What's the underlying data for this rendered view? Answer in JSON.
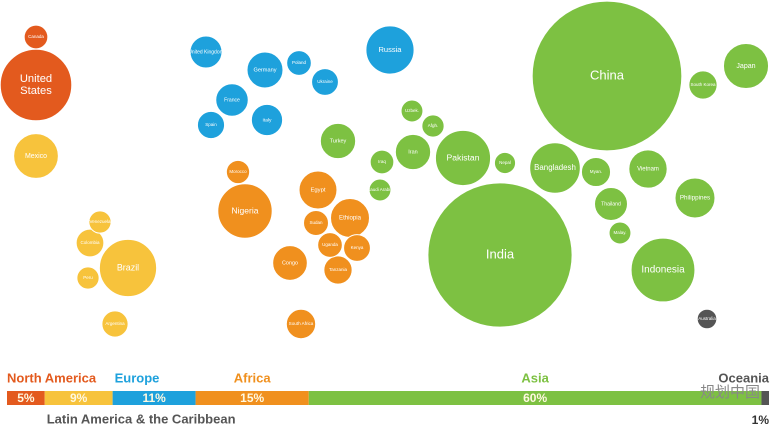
{
  "chart_data": [
    {
      "type": "bubble",
      "series": [
        {
          "color": "#e35a1e",
          "labels": [
            "Canada",
            "United States"
          ],
          "values": [
            35,
            320
          ]
        },
        {
          "color": "#f7c33c",
          "labels": [
            "Mexico",
            "Colombia",
            "Brazil",
            "Argentina",
            "Peru",
            "Venezuela"
          ],
          "values": [
            125,
            48,
            205,
            43,
            31,
            31
          ]
        },
        {
          "color": "#1ea1dc",
          "labels": [
            "United Kingdom",
            "Germany",
            "France",
            "Italy",
            "Spain",
            "Poland",
            "Ukraine",
            "Russia"
          ],
          "values": [
            64,
            81,
            66,
            61,
            46,
            38,
            45,
            145
          ]
        },
        {
          "color": "#f0901e",
          "labels": [
            "Nigeria",
            "Egypt",
            "Ethiopia",
            "Congo",
            "Kenya",
            "Tanzania",
            "South Africa",
            "Sudan",
            "Uganda",
            "Morocco"
          ],
          "values": [
            185,
            90,
            95,
            75,
            45,
            50,
            54,
            39,
            38,
            34
          ]
        },
        {
          "color": "#7dc142",
          "labels": [
            "China",
            "India",
            "Pakistan",
            "Bangladesh",
            "Indonesia",
            "Japan",
            "Philippines",
            "Vietnam",
            "Thailand",
            "Myan.",
            "Iran",
            "Turkey",
            "South Korea",
            "Nepal",
            "Iraq",
            "Saudi Arabia",
            "Uzbek.",
            "Afgh.",
            "Malay."
          ],
          "values": [
            1400,
            1300,
            190,
            160,
            255,
            127,
            100,
            92,
            68,
            53,
            78,
            78,
            50,
            28,
            35,
            30,
            30,
            31,
            30
          ]
        },
        {
          "color": "#555555",
          "labels": [
            "Australia"
          ],
          "values": [
            24
          ]
        }
      ]
    },
    {
      "type": "stacked-bar",
      "xlim": [
        0,
        101
      ],
      "series": [
        {
          "name": "North America",
          "color": "#e35a1e",
          "values": [
            5
          ],
          "value_labels": [
            "5%"
          ]
        },
        {
          "name": "Latin America & the Caribbean",
          "color": "#f7c33c",
          "values": [
            9
          ],
          "value_labels": [
            "9%"
          ]
        },
        {
          "name": "Europe",
          "color": "#1ea1dc",
          "values": [
            11
          ],
          "value_labels": [
            "11%"
          ]
        },
        {
          "name": "Africa",
          "color": "#f0901e",
          "values": [
            15
          ],
          "value_labels": [
            "15%"
          ]
        },
        {
          "name": "Asia",
          "color": "#7dc142",
          "values": [
            60
          ],
          "value_labels": [
            "60%"
          ]
        },
        {
          "name": "Oceania",
          "color": "#555555",
          "values": [
            1
          ],
          "value_labels": [
            "1%"
          ]
        }
      ]
    }
  ],
  "watermark": "规划中国"
}
